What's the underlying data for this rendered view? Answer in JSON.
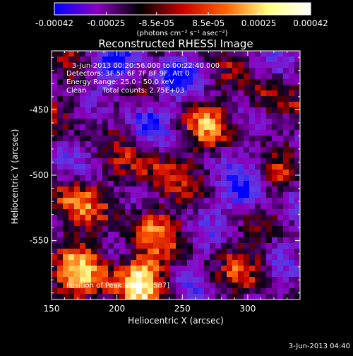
{
  "chart_data": {
    "type": "heatmap",
    "title": "Reconstructed RHESSI Image",
    "xlabel": "Heliocentric X (arcsec)",
    "ylabel": "Heliocentric Y (arcsec)",
    "xlim": [
      150,
      340
    ],
    "ylim": [
      -595,
      -405
    ],
    "x_ticks": [
      150,
      200,
      250,
      300
    ],
    "y_ticks": [
      -450,
      -500,
      -550
    ],
    "colorbar": {
      "range": [
        -0.00042,
        0.00042
      ],
      "tick_values": [
        -0.00042,
        -0.00025,
        -8.5e-05,
        8.5e-05,
        0.00025,
        0.00042
      ],
      "tick_labels": [
        "-0.00042",
        "-0.00025",
        "-8.5e-05",
        "8.5e-05",
        "0.00025",
        "0.00042"
      ],
      "unit_label": "(photons cm⁻² s⁻¹ asec⁻²)",
      "colors": [
        "#0000ff",
        "#8a00c0",
        "#000000",
        "#c80000",
        "#ff6000",
        "#ffff80",
        "#ffffff"
      ]
    },
    "annotations": {
      "time_range": "3-Jun-2013 00:20:56.000 to 00:22:40.000",
      "detectors": "Detectors: 3F 5F 6F 7F 8F 9F, Att 0",
      "energy": "Energy Range: 25.0 - 50.0 keV",
      "method": "Clean",
      "counts": "Total counts: 2.75E+03",
      "peak": "Position of Peak = [220,-587]"
    },
    "peak": [
      220,
      -587
    ]
  },
  "timestamp": "3-Jun-2013 04:40"
}
